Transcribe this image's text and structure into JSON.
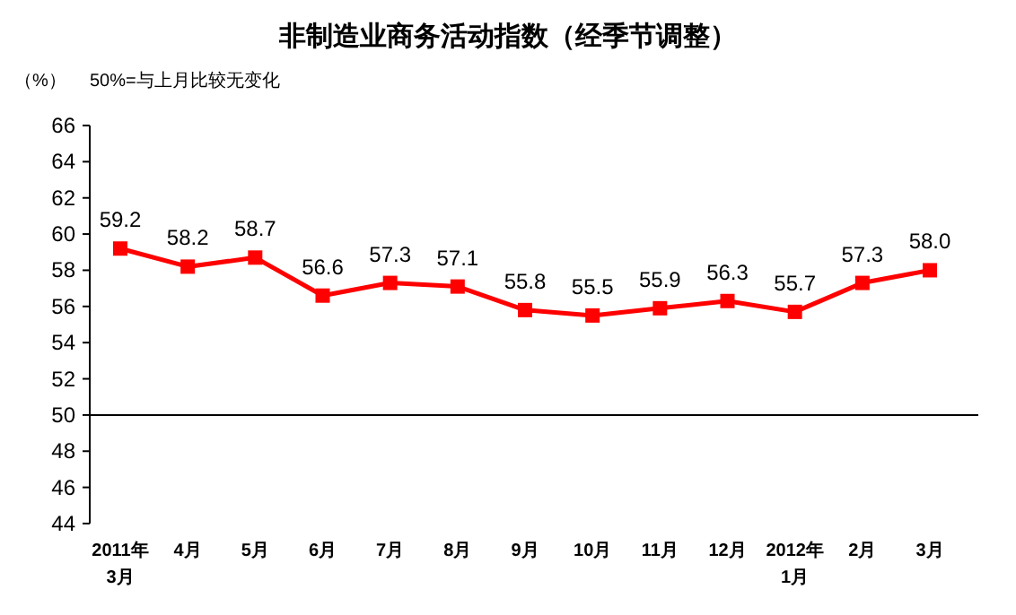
{
  "chart_data": {
    "type": "line",
    "title": "非制造业商务活动指数（经季节调整）",
    "ylabel": "（%）",
    "annotations": [
      "50%=与上月比较无变化"
    ],
    "categories": [
      "2011年\n3月",
      "4月",
      "5月",
      "6月",
      "7月",
      "8月",
      "9月",
      "10月",
      "11月",
      "12月",
      "2012年\n1月",
      "2月",
      "3月"
    ],
    "series": [
      {
        "color": "#ff0000",
        "values": [
          59.2,
          58.2,
          58.7,
          56.6,
          57.3,
          57.1,
          55.8,
          55.5,
          55.9,
          56.3,
          55.7,
          57.3,
          58.0
        ],
        "value_labels": [
          "59.2",
          "58.2",
          "58.7",
          "56.6",
          "57.3",
          "57.1",
          "55.8",
          "55.5",
          "55.9",
          "56.3",
          "55.7",
          "57.3",
          "58.0"
        ]
      }
    ],
    "ylim": [
      44,
      66
    ],
    "yticks": [
      44,
      46,
      48,
      50,
      52,
      54,
      56,
      58,
      60,
      62,
      64,
      66
    ],
    "ref_lines": [
      {
        "axis": "y",
        "value": 50,
        "color": "#000000"
      }
    ],
    "marker": "square",
    "line_style": "solid",
    "grid": false
  }
}
